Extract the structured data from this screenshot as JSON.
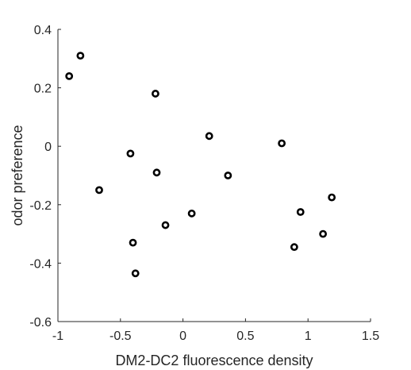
{
  "chart_data": {
    "type": "scatter",
    "title": "",
    "xlabel": "DM2-DC2 fluorescence density",
    "ylabel": "odor preference",
    "xlim": [
      -1,
      1.5
    ],
    "ylim": [
      -0.6,
      0.4
    ],
    "xticks": [
      -1,
      -0.5,
      0,
      0.5,
      1,
      1.5
    ],
    "xtick_labels": [
      "-1",
      "-0.5",
      "0",
      "0.5",
      "1",
      "1.5"
    ],
    "yticks": [
      -0.6,
      -0.4,
      -0.2,
      0,
      0.2,
      0.4
    ],
    "ytick_labels": [
      "-0.6",
      "-0.4",
      "-0.2",
      "0",
      "0.2",
      "0.4"
    ],
    "grid": false,
    "box": false,
    "marker": "open-circle",
    "marker_color": "#000000",
    "points": [
      {
        "x": -0.82,
        "y": 0.31
      },
      {
        "x": -0.91,
        "y": 0.24
      },
      {
        "x": -0.22,
        "y": 0.18
      },
      {
        "x": 0.21,
        "y": 0.035
      },
      {
        "x": 0.79,
        "y": 0.01
      },
      {
        "x": -0.42,
        "y": -0.025
      },
      {
        "x": -0.21,
        "y": -0.09
      },
      {
        "x": 0.36,
        "y": -0.1
      },
      {
        "x": -0.67,
        "y": -0.15
      },
      {
        "x": 1.19,
        "y": -0.175
      },
      {
        "x": 0.94,
        "y": -0.225
      },
      {
        "x": 0.07,
        "y": -0.23
      },
      {
        "x": -0.14,
        "y": -0.27
      },
      {
        "x": 1.12,
        "y": -0.3
      },
      {
        "x": -0.4,
        "y": -0.33
      },
      {
        "x": 0.89,
        "y": -0.345
      },
      {
        "x": -0.38,
        "y": -0.435
      }
    ]
  }
}
